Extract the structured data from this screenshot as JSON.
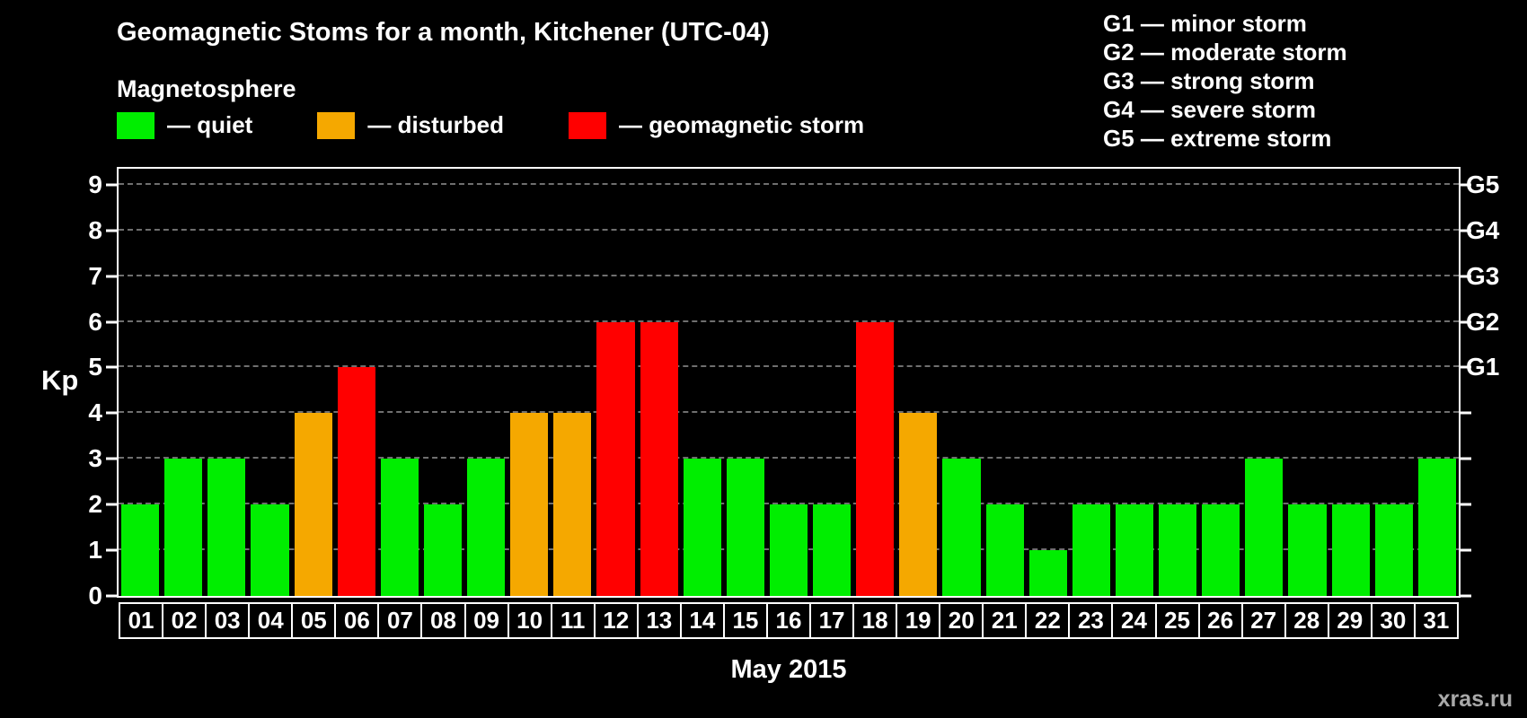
{
  "title": "Geomagnetic Stoms for a month, Kitchener (UTC-04)",
  "legend": {
    "heading": "Magnetosphere",
    "items": [
      {
        "name": "quiet",
        "label": "— quiet",
        "color": "#00ee00"
      },
      {
        "name": "disturbed",
        "label": "— disturbed",
        "color": "#f5a800"
      },
      {
        "name": "storm",
        "label": "— geomagnetic storm",
        "color": "#ff0000"
      }
    ]
  },
  "storm_scale_legend": [
    "G1 — minor storm",
    "G2 — moderate storm",
    "G3 — strong storm",
    "G4 — severe storm",
    "G5 — extreme storm"
  ],
  "watermark": "xras.ru",
  "chart_data": {
    "type": "bar",
    "title": "Geomagnetic Stoms for a month, Kitchener (UTC-04)",
    "xlabel": "May 2015",
    "ylabel": "Kp",
    "ylim": [
      0,
      9
    ],
    "y_axis_top": 9.35,
    "grid": "dashed horizontal gridlines at each integer Kp",
    "legend_position": "top",
    "categories": [
      "01",
      "02",
      "03",
      "04",
      "05",
      "06",
      "07",
      "08",
      "09",
      "10",
      "11",
      "12",
      "13",
      "14",
      "15",
      "16",
      "17",
      "18",
      "19",
      "20",
      "21",
      "22",
      "23",
      "24",
      "25",
      "26",
      "27",
      "28",
      "29",
      "30",
      "31"
    ],
    "values": [
      2,
      3,
      3,
      2,
      4,
      5,
      3,
      2,
      3,
      4,
      4,
      6,
      6,
      3,
      3,
      2,
      2,
      6,
      4,
      3,
      2,
      1,
      2,
      2,
      2,
      2,
      3,
      2,
      2,
      2,
      3
    ],
    "y_ticks": [
      "0",
      "1",
      "2",
      "3",
      "4",
      "5",
      "6",
      "7",
      "8",
      "9"
    ],
    "right_axis": {
      "labels": [
        "G1",
        "G2",
        "G3",
        "G4",
        "G5"
      ],
      "positions": [
        5,
        6,
        7,
        8,
        9
      ]
    },
    "colors": {
      "quiet": "#00ee00",
      "disturbed": "#f5a800",
      "storm": "#ff0000"
    },
    "thresholds": {
      "disturbed_min": 4,
      "storm_min": 5
    },
    "gridline_color": "#6f6f6f"
  }
}
